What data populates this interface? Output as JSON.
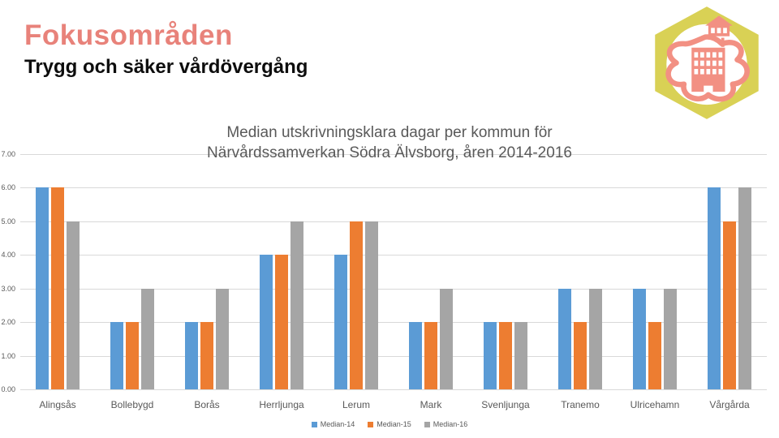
{
  "slide": {
    "title": "Fokusområden",
    "subtitle": "Trygg och säker vårdövergång"
  },
  "theme": {
    "background": "#ffffff",
    "title_color": "#e8827a",
    "subtitle_color": "#0d0d0d",
    "chart_text_color": "#595959",
    "gridline_color": "#d9d9d9",
    "logo_hex_color": "#d9d155",
    "logo_art_color": "#f29083"
  },
  "logo": {
    "name": "narvardssamverkan-sodra-alvsborg-logo"
  },
  "chart_data": {
    "type": "bar",
    "title": "Median utskrivningsklara dagar per kommun för Närvårdssamverkan Södra Älvsborg, åren 2014-2016",
    "title_lines": [
      "Median utskrivningsklara dagar per kommun för",
      "Närvårdssamverkan Södra Älvsborg, åren 2014-2016"
    ],
    "categories": [
      "Alingsås",
      "Bollebygd",
      "Borås",
      "Herrljunga",
      "Lerum",
      "Mark",
      "Svenljunga",
      "Tranemo",
      "Ulricehamn",
      "Vårgårda"
    ],
    "series": [
      {
        "name": "Median-14",
        "color": "#5b9bd5",
        "values": [
          6,
          2,
          2,
          4,
          4,
          2,
          2,
          3,
          3,
          6
        ]
      },
      {
        "name": "Median-15",
        "color": "#ed7d31",
        "values": [
          6,
          2,
          2,
          4,
          5,
          2,
          2,
          2,
          2,
          5
        ]
      },
      {
        "name": "Median-16",
        "color": "#a5a5a5",
        "values": [
          5,
          3,
          3,
          5,
          5,
          3,
          2,
          3,
          3,
          6
        ]
      }
    ],
    "xlabel": "",
    "ylabel": "",
    "ylim": [
      0,
      7
    ],
    "y_ticks": [
      "7.00",
      "6.00",
      "5.00",
      "4.00",
      "3.00",
      "2.00",
      "1.00",
      "0.00"
    ],
    "grid": true,
    "legend_position": "bottom"
  }
}
